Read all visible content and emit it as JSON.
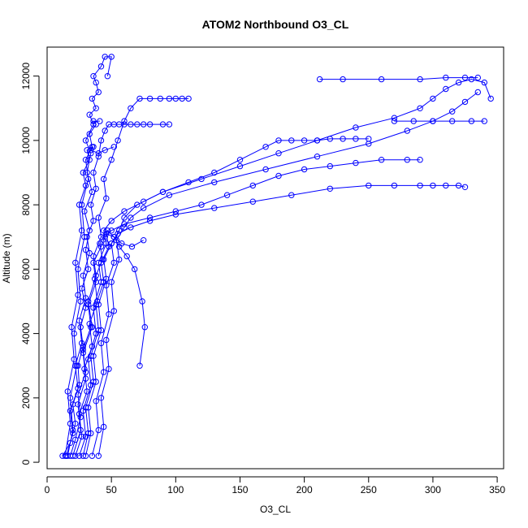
{
  "chart_data": {
    "type": "scatter",
    "title": "ATOM2 Northbound O3_CL",
    "xlabel": "O3_CL",
    "ylabel": "Altitude (m)",
    "xlim": [
      0,
      355
    ],
    "ylim": [
      -200,
      12900
    ],
    "x_ticks": [
      0,
      50,
      100,
      150,
      200,
      250,
      300,
      350
    ],
    "y_ticks": [
      0,
      2000,
      4000,
      6000,
      8000,
      10000,
      12000
    ],
    "x_tick_labels": [
      "0",
      "50",
      "100",
      "150",
      "200",
      "250",
      "300",
      "350"
    ],
    "y_tick_labels": [
      "0",
      "2000",
      "4000",
      "6000",
      "8000",
      "10000",
      "12000"
    ],
    "grid": false,
    "legend": "none",
    "series_color": "#0000ff",
    "series": [
      {
        "x": [
          12,
          18,
          22,
          20,
          25,
          24,
          28,
          26,
          30,
          27,
          32,
          30,
          33,
          29,
          35,
          31,
          34,
          30,
          36,
          33,
          38,
          35,
          40,
          38,
          36,
          42,
          45,
          50,
          47
        ],
        "y": [
          200,
          600,
          1200,
          1800,
          2400,
          3000,
          3600,
          4200,
          4800,
          5400,
          6000,
          6600,
          7200,
          7800,
          8400,
          9000,
          9600,
          10000,
          10500,
          10800,
          11000,
          11300,
          11500,
          11800,
          12000,
          12300,
          12600,
          12600,
          12000
        ]
      },
      {
        "x": [
          15,
          20,
          18,
          24,
          22,
          27,
          25,
          30,
          28,
          33,
          31,
          36,
          34,
          38,
          36,
          40,
          42,
          45,
          48,
          52,
          56,
          60,
          65,
          70,
          75,
          80,
          90,
          95
        ],
        "y": [
          200,
          900,
          1600,
          2300,
          3000,
          3700,
          4400,
          5100,
          5800,
          6500,
          7000,
          7500,
          8000,
          8500,
          9000,
          9500,
          10000,
          10300,
          10500,
          10500,
          10500,
          10500,
          10500,
          10500,
          10500,
          10500,
          10500,
          10500
        ]
      },
      {
        "x": [
          20,
          26,
          24,
          30,
          28,
          35,
          32,
          38,
          36,
          42,
          40,
          46,
          44,
          50,
          55,
          60,
          65,
          72,
          80,
          88,
          95,
          100,
          105,
          110
        ],
        "y": [
          200,
          1000,
          1800,
          2600,
          3400,
          4200,
          5000,
          5800,
          6400,
          7000,
          7600,
          8200,
          8800,
          9400,
          10000,
          10600,
          11000,
          11300,
          11300,
          11300,
          11300,
          11300,
          11300,
          11300
        ]
      },
      {
        "x": [
          25,
          30,
          28,
          34,
          32,
          38,
          36,
          42,
          40,
          46,
          44,
          50,
          60,
          75,
          90,
          110,
          130,
          150,
          170,
          180,
          190,
          200,
          210,
          220,
          230,
          240,
          250
        ],
        "y": [
          200,
          800,
          1600,
          2400,
          3200,
          4000,
          4800,
          5600,
          6200,
          6800,
          7200,
          7500,
          7800,
          8100,
          8400,
          8700,
          9000,
          9400,
          9800,
          10000,
          10000,
          10000,
          10000,
          10050,
          10050,
          10050,
          10050
        ]
      },
      {
        "x": [
          18,
          22,
          26,
          24,
          30,
          28,
          34,
          32,
          38,
          36,
          42,
          45,
          50,
          60,
          80,
          100,
          120,
          140,
          160,
          180,
          200,
          220,
          240,
          260,
          280,
          290
        ],
        "y": [
          200,
          700,
          1400,
          2100,
          2800,
          3500,
          4200,
          4900,
          5600,
          6200,
          6700,
          7000,
          7200,
          7400,
          7600,
          7800,
          8000,
          8300,
          8600,
          8900,
          9100,
          9200,
          9300,
          9400,
          9400,
          9400
        ]
      },
      {
        "x": [
          30,
          34,
          32,
          38,
          36,
          42,
          40,
          46,
          44,
          50,
          55,
          65,
          80,
          100,
          130,
          160,
          190,
          220,
          250,
          270,
          290,
          300,
          310,
          320,
          325
        ],
        "y": [
          200,
          900,
          1700,
          2500,
          3300,
          4100,
          4900,
          5700,
          6300,
          6800,
          7100,
          7300,
          7500,
          7700,
          7900,
          8100,
          8300,
          8500,
          8600,
          8600,
          8600,
          8600,
          8600,
          8600,
          8550
        ]
      },
      {
        "x": [
          35,
          40,
          38,
          44,
          42,
          48,
          46,
          52,
          50,
          56,
          60,
          70,
          90,
          120,
          150,
          180,
          210,
          240,
          270,
          290,
          300,
          310,
          320,
          330,
          340,
          345
        ],
        "y": [
          200,
          1000,
          1900,
          2800,
          3700,
          4600,
          5500,
          6200,
          6800,
          7200,
          7600,
          8000,
          8400,
          8800,
          9200,
          9600,
          10000,
          10400,
          10700,
          11000,
          11300,
          11600,
          11800,
          11900,
          11800,
          11300
        ]
      },
      {
        "x": [
          40,
          44,
          42,
          48,
          46,
          52,
          50,
          56,
          54,
          60,
          65,
          75,
          95,
          130,
          170,
          210,
          250,
          280,
          300,
          315,
          325,
          335
        ],
        "y": [
          200,
          1100,
          2000,
          2900,
          3800,
          4700,
          5600,
          6300,
          6900,
          7300,
          7600,
          7900,
          8300,
          8700,
          9100,
          9500,
          9900,
          10300,
          10600,
          10900,
          11200,
          11500
        ]
      },
      {
        "x": [
          22,
          27,
          25,
          31,
          29,
          35,
          33,
          39,
          37,
          43,
          41,
          47,
          52,
          58,
          66,
          75
        ],
        "y": [
          200,
          800,
          1500,
          2200,
          2900,
          3600,
          4300,
          5000,
          5700,
          6300,
          6800,
          7200,
          7000,
          6800,
          6700,
          6900
        ]
      },
      {
        "x": [
          28,
          32,
          30,
          36,
          34,
          40,
          38,
          44,
          42,
          48,
          46,
          52,
          56,
          62,
          68,
          74,
          76,
          72
        ],
        "y": [
          200,
          900,
          1700,
          2500,
          3300,
          4100,
          4900,
          5600,
          6200,
          6700,
          7100,
          7000,
          6700,
          6400,
          6000,
          5000,
          4200,
          3000
        ]
      },
      {
        "x": [
          16,
          20,
          18,
          23,
          21,
          26,
          24,
          29,
          27,
          32,
          30,
          35,
          33,
          38,
          36,
          41
        ],
        "y": [
          200,
          1000,
          2000,
          3000,
          4000,
          5000,
          6000,
          7000,
          8000,
          8800,
          9400,
          9800,
          10200,
          10500,
          10600,
          10600
        ]
      },
      {
        "x": [
          14,
          18,
          16,
          21,
          19,
          24,
          22,
          27,
          25,
          30,
          28,
          33,
          31,
          36,
          34,
          40,
          45,
          52
        ],
        "y": [
          200,
          1200,
          2200,
          3200,
          4200,
          5200,
          6200,
          7200,
          8000,
          8600,
          9000,
          9400,
          9700,
          9800,
          9700,
          9600,
          9700,
          9800
        ]
      },
      {
        "x": [
          212,
          230,
          260,
          290,
          310,
          325,
          335
        ],
        "y": [
          11900,
          11900,
          11900,
          11900,
          11950,
          11950,
          11950
        ]
      },
      {
        "x": [
          270,
          285,
          300,
          315,
          330,
          340
        ],
        "y": [
          10600,
          10600,
          10600,
          10600,
          10600,
          10600
        ]
      }
    ]
  }
}
